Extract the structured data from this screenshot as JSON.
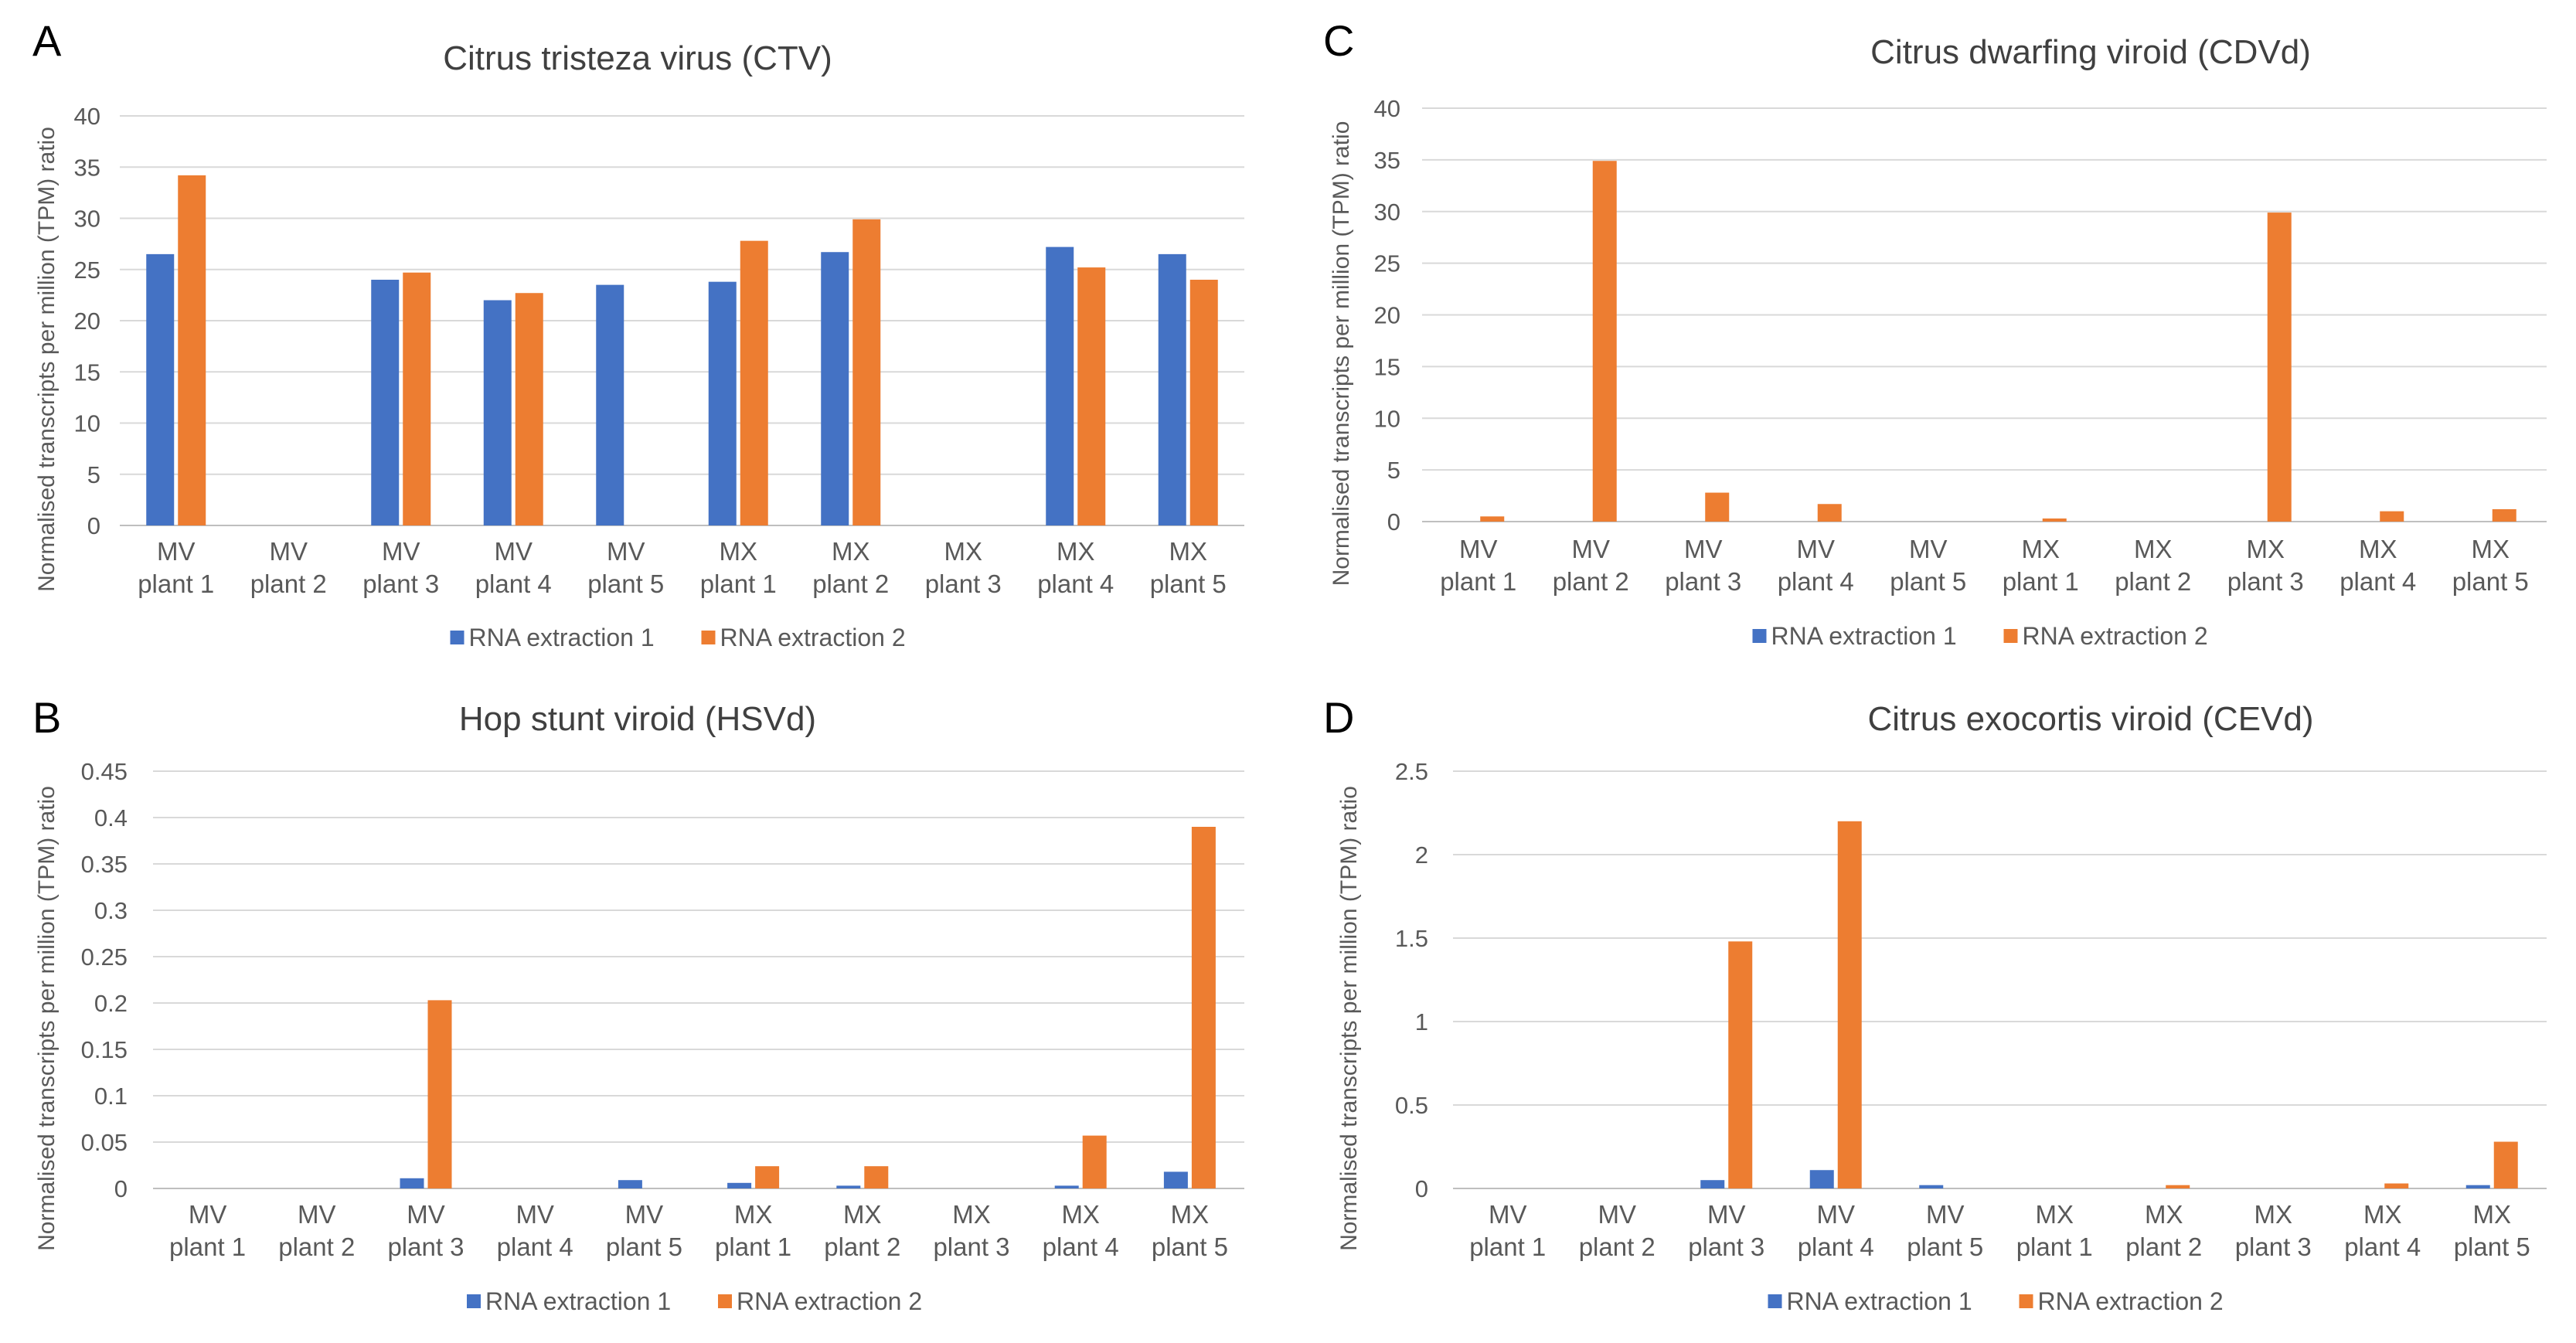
{
  "chart_data": [
    {
      "panel": "A",
      "type": "bar",
      "title": "Citrus tristeza virus (CTV)",
      "ylabel": "Normalised transcripts per million (TPM) ratio",
      "xlabel": "",
      "ylim": [
        0,
        40
      ],
      "yticks": [
        "0",
        "5",
        "10",
        "15",
        "20",
        "25",
        "30",
        "35",
        "40"
      ],
      "categories": [
        [
          "MV",
          "plant 1"
        ],
        [
          "MV",
          "plant 2"
        ],
        [
          "MV",
          "plant 3"
        ],
        [
          "MV",
          "plant 4"
        ],
        [
          "MV",
          "plant 5"
        ],
        [
          "MX",
          "plant 1"
        ],
        [
          "MX",
          "plant 2"
        ],
        [
          "MX",
          "plant 3"
        ],
        [
          "MX",
          "plant 4"
        ],
        [
          "MX",
          "plant 5"
        ]
      ],
      "series": [
        {
          "name": "RNA extraction 1",
          "color": "#4472c4",
          "values": [
            26.5,
            0,
            24.0,
            22.0,
            23.5,
            23.8,
            26.7,
            0,
            27.2,
            26.5
          ]
        },
        {
          "name": "RNA extraction 2",
          "color": "#ed7d31",
          "values": [
            34.2,
            0,
            24.7,
            22.7,
            0,
            27.8,
            29.9,
            0,
            25.2,
            24.0
          ]
        }
      ],
      "grid": true,
      "legend": "bottom"
    },
    {
      "panel": "C",
      "type": "bar",
      "title": "Citrus dwarfing viroid (CDVd)",
      "ylabel": "Normalised transcripts per million (TPM) ratio",
      "xlabel": "",
      "ylim": [
        0,
        40
      ],
      "yticks": [
        "0",
        "5",
        "10",
        "15",
        "20",
        "25",
        "30",
        "35",
        "40"
      ],
      "categories": [
        [
          "MV",
          "plant 1"
        ],
        [
          "MV",
          "plant 2"
        ],
        [
          "MV",
          "plant 3"
        ],
        [
          "MV",
          "plant 4"
        ],
        [
          "MV",
          "plant 5"
        ],
        [
          "MX",
          "plant 1"
        ],
        [
          "MX",
          "plant 2"
        ],
        [
          "MX",
          "plant 3"
        ],
        [
          "MX",
          "plant 4"
        ],
        [
          "MX",
          "plant 5"
        ]
      ],
      "series": [
        {
          "name": "RNA extraction 1",
          "color": "#4472c4",
          "values": [
            0,
            0,
            0,
            0,
            0,
            0,
            0,
            0,
            0,
            0
          ]
        },
        {
          "name": "RNA extraction 2",
          "color": "#ed7d31",
          "values": [
            0.5,
            34.9,
            2.8,
            1.7,
            0,
            0.3,
            0,
            29.9,
            1.0,
            1.2
          ]
        }
      ],
      "grid": true,
      "legend": "bottom"
    },
    {
      "panel": "B",
      "type": "bar",
      "title": "Hop stunt viroid (HSVd)",
      "ylabel": "Normalised transcripts per million (TPM) ratio",
      "xlabel": "",
      "ylim": [
        0,
        0.45
      ],
      "yticks": [
        "0",
        "0.05",
        "0.1",
        "0.15",
        "0.2",
        "0.25",
        "0.3",
        "0.35",
        "0.4",
        "0.45"
      ],
      "categories": [
        [
          "MV",
          "plant 1"
        ],
        [
          "MV",
          "plant 2"
        ],
        [
          "MV",
          "plant 3"
        ],
        [
          "MV",
          "plant 4"
        ],
        [
          "MV",
          "plant 5"
        ],
        [
          "MX",
          "plant 1"
        ],
        [
          "MX",
          "plant 2"
        ],
        [
          "MX",
          "plant 3"
        ],
        [
          "MX",
          "plant 4"
        ],
        [
          "MX",
          "plant 5"
        ]
      ],
      "series": [
        {
          "name": "RNA extraction 1",
          "color": "#4472c4",
          "values": [
            0,
            0,
            0.011,
            0,
            0.009,
            0.006,
            0.003,
            0,
            0.003,
            0.018
          ]
        },
        {
          "name": "RNA extraction 2",
          "color": "#ed7d31",
          "values": [
            0,
            0,
            0.203,
            0,
            0,
            0.024,
            0.024,
            0,
            0.057,
            0.39
          ]
        }
      ],
      "grid": true,
      "legend": "bottom"
    },
    {
      "panel": "D",
      "type": "bar",
      "title": "Citrus exocortis viroid (CEVd)",
      "ylabel": "Normalised transcripts per million (TPM) ratio",
      "xlabel": "",
      "ylim": [
        0,
        2.5
      ],
      "yticks": [
        "0",
        "0.5",
        "1",
        "1.5",
        "2",
        "2.5"
      ],
      "categories": [
        [
          "MV",
          "plant 1"
        ],
        [
          "MV",
          "plant 2"
        ],
        [
          "MV",
          "plant 3"
        ],
        [
          "MV",
          "plant 4"
        ],
        [
          "MV",
          "plant 5"
        ],
        [
          "MX",
          "plant 1"
        ],
        [
          "MX",
          "plant 2"
        ],
        [
          "MX",
          "plant 3"
        ],
        [
          "MX",
          "plant 4"
        ],
        [
          "MX",
          "plant 5"
        ]
      ],
      "series": [
        {
          "name": "RNA extraction 1",
          "color": "#4472c4",
          "values": [
            0,
            0,
            0.05,
            0.11,
            0.02,
            0,
            0,
            0,
            0,
            0.02
          ]
        },
        {
          "name": "RNA extraction 2",
          "color": "#ed7d31",
          "values": [
            0,
            0,
            1.48,
            2.2,
            0,
            0,
            0.02,
            0,
            0.03,
            0.28
          ]
        }
      ],
      "grid": true,
      "legend": "bottom"
    }
  ]
}
